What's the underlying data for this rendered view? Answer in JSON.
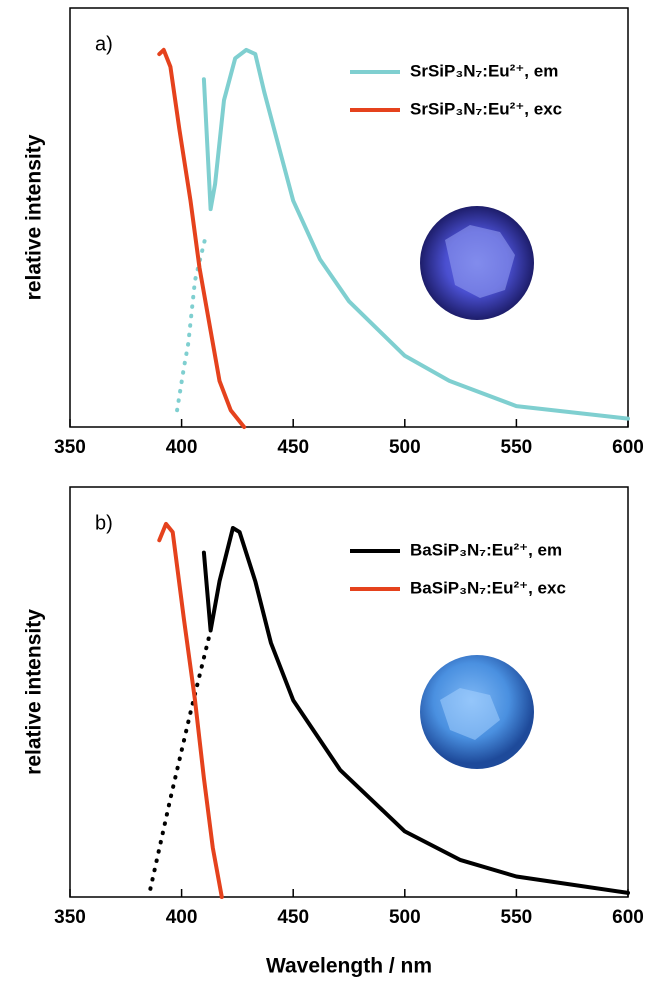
{
  "chart_data": [
    {
      "type": "line",
      "panel_label": "a)",
      "y_label": "relative intensity",
      "legend": "upper right",
      "xlim": [
        350,
        600
      ],
      "xticks": [
        350,
        400,
        450,
        500,
        550,
        600
      ],
      "ylim": [
        0,
        1
      ],
      "series": [
        {
          "name": "SrSiP₃N₇:Eu²⁺, em",
          "color": "#7fcfd0",
          "x": [
            410,
            413,
            415,
            419,
            424,
            429,
            433,
            437,
            444,
            450,
            462,
            475,
            500,
            520,
            550,
            600
          ],
          "values": [
            0.83,
            0.52,
            0.58,
            0.78,
            0.88,
            0.9,
            0.89,
            0.8,
            0.66,
            0.54,
            0.4,
            0.3,
            0.17,
            0.11,
            0.05,
            0.02
          ],
          "dotted_x": [
            398,
            401,
            403,
            406,
            411
          ],
          "dotted_values": [
            0.04,
            0.14,
            0.2,
            0.35,
            0.46
          ]
        },
        {
          "name": "SrSiP₃N₇:Eu²⁺, exc",
          "color": "#e5421d",
          "x": [
            390,
            392,
            395,
            399,
            404,
            408,
            413,
            417,
            422,
            428
          ],
          "values": [
            0.89,
            0.9,
            0.86,
            0.71,
            0.54,
            0.38,
            0.23,
            0.11,
            0.04,
            0.0
          ]
        }
      ]
    },
    {
      "type": "line",
      "panel_label": "b)",
      "y_label": "relative intensity",
      "x_label": "Wavelength / nm",
      "legend": "upper right",
      "xlim": [
        350,
        600
      ],
      "xticks": [
        350,
        400,
        450,
        500,
        550,
        600
      ],
      "ylim": [
        0,
        1
      ],
      "series": [
        {
          "name": "BaSiP₃N₇:Eu²⁺, em",
          "color": "#000000",
          "x": [
            410,
            413,
            417,
            423,
            426,
            433,
            440,
            450,
            471,
            500,
            525,
            550,
            600
          ],
          "values": [
            0.84,
            0.65,
            0.77,
            0.9,
            0.89,
            0.77,
            0.62,
            0.48,
            0.31,
            0.16,
            0.09,
            0.05,
            0.01
          ],
          "dotted_x": [
            386,
            395,
            404,
            413
          ],
          "dotted_values": [
            0.02,
            0.24,
            0.45,
            0.65
          ]
        },
        {
          "name": "BaSiP₃N₇:Eu²⁺, exc",
          "color": "#e5421d",
          "x": [
            390,
            393,
            396,
            401,
            406,
            410,
            414,
            418
          ],
          "values": [
            0.87,
            0.91,
            0.89,
            0.68,
            0.48,
            0.29,
            0.12,
            0.0
          ]
        }
      ]
    }
  ]
}
